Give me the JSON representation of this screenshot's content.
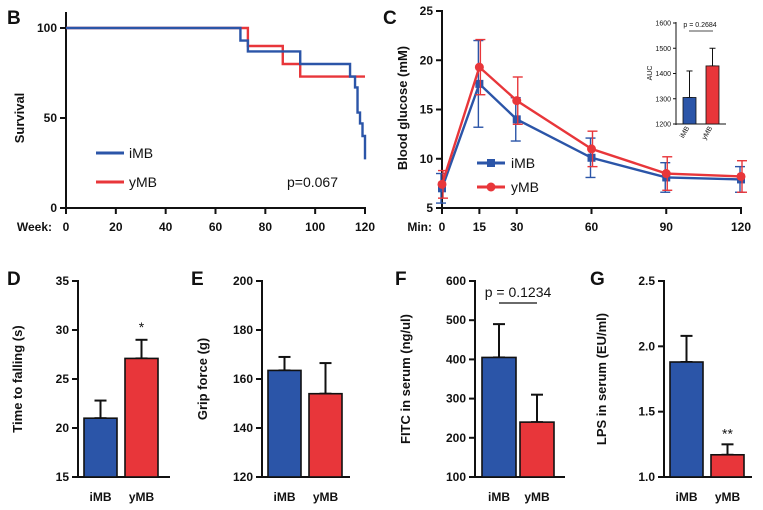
{
  "colors": {
    "blue": "#2b55a8",
    "red": "#e8363a",
    "axis": "#111111",
    "errBlue": "#2b55a8",
    "errRed": "#e8363a"
  },
  "chart_data": [
    {
      "panel": "B",
      "type": "line",
      "subtype": "kaplan-meier",
      "xlabel": "Week:",
      "ylabel": "Survival",
      "xlim": [
        0,
        120
      ],
      "ylim": [
        0,
        100
      ],
      "xticks": [
        "0",
        "20",
        "40",
        "60",
        "80",
        "100",
        "120"
      ],
      "yticks": [
        "0",
        "50",
        "100"
      ],
      "annotation": "p=0.067",
      "series": [
        {
          "name": "iMB",
          "x": [
            0,
            68,
            70,
            73,
            94,
            114,
            116,
            117,
            118,
            119,
            120
          ],
          "y": [
            100,
            100,
            93,
            87,
            80,
            73,
            67,
            53,
            47,
            40,
            27
          ]
        },
        {
          "name": "yMB",
          "x": [
            0,
            70,
            73,
            87,
            94,
            120
          ],
          "y": [
            100,
            100,
            90,
            80,
            73,
            73
          ]
        }
      ]
    },
    {
      "panel": "C",
      "type": "line",
      "xlabel": "Min:",
      "ylabel": "Blood glucose (mM)",
      "xlim": [
        0,
        120
      ],
      "ylim": [
        5,
        25
      ],
      "xticks": [
        "0",
        "15",
        "30",
        "60",
        "90",
        "120"
      ],
      "yticks": [
        "5",
        "10",
        "15",
        "20",
        "25"
      ],
      "x": [
        0,
        15,
        30,
        60,
        90,
        120
      ],
      "series": [
        {
          "name": "iMB",
          "values": [
            7.0,
            17.6,
            14.0,
            10.1,
            8.1,
            7.9
          ],
          "err": [
            1.5,
            4.4,
            2.2,
            2.0,
            1.5,
            1.3
          ]
        },
        {
          "name": "yMB",
          "values": [
            7.4,
            19.3,
            15.9,
            11.0,
            8.5,
            8.2
          ],
          "err": [
            1.4,
            2.8,
            2.4,
            1.8,
            1.7,
            1.6
          ]
        }
      ],
      "inset": {
        "type": "bar",
        "ylabel": "AUC",
        "ylim": [
          1200,
          1600
        ],
        "yticks": [
          "1200",
          "1300",
          "1400",
          "1500",
          "1600"
        ],
        "categories": [
          "iMB",
          "yMB"
        ],
        "values": [
          1305,
          1430
        ],
        "err": [
          105,
          70
        ],
        "annotation": "p = 0.2684"
      }
    },
    {
      "panel": "D",
      "type": "bar",
      "ylabel": "Time to falling (s)",
      "ylim": [
        15,
        35
      ],
      "yticks": [
        "15",
        "20",
        "25",
        "30",
        "35"
      ],
      "categories": [
        "iMB",
        "yMB"
      ],
      "values": [
        21.0,
        27.1
      ],
      "err": [
        1.8,
        1.9
      ],
      "annotation": "*"
    },
    {
      "panel": "E",
      "type": "bar",
      "ylabel": "Grip force (g)",
      "ylim": [
        120,
        200
      ],
      "yticks": [
        "120",
        "140",
        "160",
        "180",
        "200"
      ],
      "categories": [
        "iMB",
        "yMB"
      ],
      "values": [
        163.5,
        154
      ],
      "err": [
        5.5,
        12.5
      ]
    },
    {
      "panel": "F",
      "type": "bar",
      "ylabel": "FITC in serum (ng/ul)",
      "ylim": [
        100,
        600
      ],
      "yticks": [
        "100",
        "200",
        "300",
        "400",
        "500",
        "600"
      ],
      "categories": [
        "iMB",
        "yMB"
      ],
      "values": [
        405,
        240
      ],
      "err": [
        85,
        70
      ],
      "annotation": "p = 0.1234"
    },
    {
      "panel": "G",
      "type": "bar",
      "ylabel": "LPS in serum (EU/ml)",
      "ylim": [
        1.0,
        2.5
      ],
      "yticks": [
        "1.0",
        "1.5",
        "2.0",
        "2.5"
      ],
      "categories": [
        "iMB",
        "yMB"
      ],
      "values": [
        1.88,
        1.17
      ],
      "err": [
        0.2,
        0.08
      ],
      "annotation": "**"
    }
  ]
}
